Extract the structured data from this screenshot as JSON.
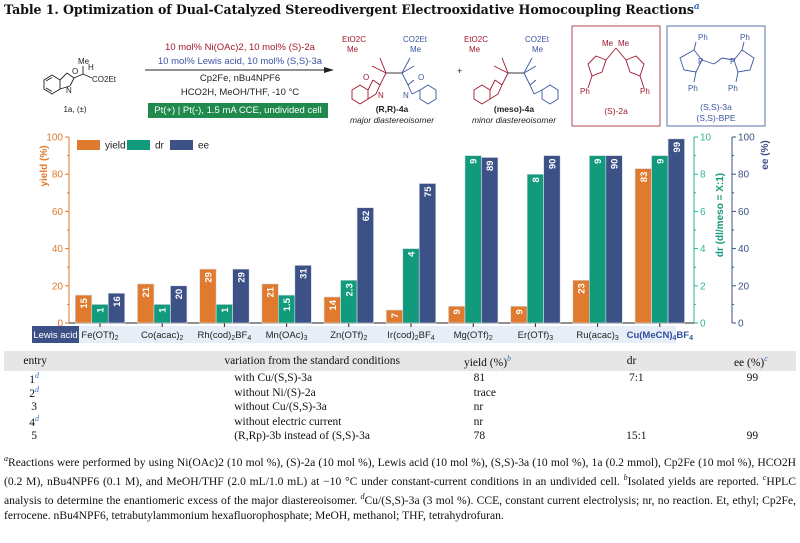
{
  "title": "Table 1. Optimization of Dual-Catalyzed Stereodivergent Electrooxidative Homocoupling Reactions",
  "title_footnote": "a",
  "scheme": {
    "substrate_label": "1a, (±)",
    "substrate_groups": {
      "me": "Me",
      "h": "H",
      "ester": "CO2Et",
      "o": "O",
      "n": "N"
    },
    "conditions": {
      "line1": "10 mol% Ni(OAc)2, 10 mol% (S)-2a",
      "line2": "10 mol% Lewis acid, 10 mol% (S,S)-3a",
      "line3": "Cp2Fe, nBu4NPF6",
      "line4": "HCO2H, MeOH/THF, -10 °C",
      "electro": "Pt(+) | Pt(-), 1.5 mA CCE, undivided cell"
    },
    "product_major": {
      "label": "(R,R)-4a",
      "caption": "major diastereoisomer"
    },
    "product_minor": {
      "label": "(meso)-4a",
      "caption": "minor diastereoisomer"
    },
    "plus": "+",
    "ligand_2a": {
      "label": "(S)-2a"
    },
    "ligand_3a": {
      "label1": "(S,S)-3a",
      "label2": "(S,S)-BPE"
    },
    "group_labels": {
      "eto2c": "EtO2C",
      "co2et": "CO2Et",
      "me": "Me",
      "ph": "Ph",
      "p": "P",
      "o": "O",
      "n": "N"
    },
    "colors": {
      "red": "#a0182c",
      "blue": "#3b56a0",
      "box_red": "#b24a55",
      "box_blue": "#5a72a8"
    }
  },
  "chart_data": {
    "type": "bar",
    "title": "",
    "categories": [
      "Fe(OTf)2",
      "Co(acac)2",
      "Rh(cod)2BF4",
      "Mn(OAc)3",
      "Zn(OTf)2",
      "Ir(cod)2BF4",
      "Mg(OTf)2",
      "Er(OTf)3",
      "Ru(acac)3",
      "Cu(MeCN)4BF4"
    ],
    "category_axis_label": "Lewis acid",
    "highlight_category": "Cu(MeCN)4BF4",
    "series": [
      {
        "name": "yield",
        "axis": "yield",
        "color": "#e07a2e",
        "values": [
          15,
          21,
          29,
          21,
          14,
          7,
          9,
          9,
          23,
          83
        ],
        "labels": [
          "15",
          "21",
          "29",
          "21",
          "14",
          "7",
          "9",
          "9",
          "23",
          "83"
        ]
      },
      {
        "name": "dr",
        "axis": "dr",
        "color": "#129a7c",
        "values": [
          1,
          1,
          1,
          1.5,
          2.3,
          4,
          9,
          8,
          9,
          9
        ],
        "labels": [
          "1",
          "1",
          "1",
          "1.5",
          "2.3",
          "4",
          "9",
          "8",
          "9",
          "9"
        ]
      },
      {
        "name": "ee",
        "axis": "ee",
        "color": "#3c5186",
        "values": [
          16,
          20,
          29,
          31,
          62,
          75,
          89,
          90,
          90,
          99
        ],
        "labels": [
          "16",
          "20",
          "29",
          "31",
          "62",
          "75",
          "89",
          "90",
          "90",
          "99"
        ]
      }
    ],
    "axes": {
      "yield": {
        "label": "yield (%)",
        "ylim": [
          0,
          100
        ],
        "ticks": [
          "0",
          "20",
          "40",
          "60",
          "80",
          "100"
        ],
        "color": "#e07a2e"
      },
      "dr": {
        "label": "dr (dl/meso = X:1)",
        "ylim": [
          0,
          10
        ],
        "ticks": [
          "0",
          "2",
          "4",
          "6",
          "8",
          "10"
        ],
        "color": "#2bb594"
      },
      "ee": {
        "label": "ee (%)",
        "ylim": [
          0,
          100
        ],
        "ticks": [
          "0",
          "20",
          "40",
          "60",
          "80",
          "100"
        ],
        "color": "#3c5186"
      }
    },
    "legend": {
      "position": "top-left",
      "entries": [
        "yield",
        "dr",
        "ee"
      ]
    },
    "grid": false
  },
  "table": {
    "headers": {
      "entry": "entry",
      "variation": "variation from the standard conditions",
      "yield": "yield (%)",
      "yield_sup": "b",
      "dr": "dr",
      "ee": "ee (%)",
      "ee_sup": "c"
    },
    "rows": [
      {
        "entry": "1",
        "sup": "d",
        "variation": "with Cu/(S,S)-3a",
        "yield": "81",
        "dr": "7:1",
        "ee": "99"
      },
      {
        "entry": "2",
        "sup": "d",
        "variation": "without Ni/(S)-2a",
        "yield": "trace",
        "dr": "",
        "ee": ""
      },
      {
        "entry": "3",
        "sup": "",
        "variation": "without Cu/(S,S)-3a",
        "yield": "nr",
        "dr": "",
        "ee": ""
      },
      {
        "entry": "4",
        "sup": "d",
        "variation": "without electric current",
        "yield": "nr",
        "dr": "",
        "ee": ""
      },
      {
        "entry": "5",
        "sup": "",
        "variation": "(R,Rp)-3b instead of (S,S)-3a",
        "yield": "78",
        "dr": "15:1",
        "ee": "99"
      }
    ]
  },
  "footnotes": {
    "a": "Reactions were performed by using Ni(OAc)2 (10 mol %), (S)-2a (10 mol %), Lewis acid (10 mol %), (S,S)-3a (10 mol %), 1a (0.2 mmol), Cp2Fe (10 mol %), HCO2H (0.2 M), nBu4NPF6 (0.1 M), and MeOH/THF (2.0 mL/1.0 mL) at −10 °C under constant-current conditions in an undivided cell.",
    "b": "Isolated yields are reported.",
    "c": "HPLC analysis to determine the enantiomeric excess of the major diastereoisomer.",
    "d": "Cu/(S,S)-3a (3 mol %). CCE, constant current electrolysis; nr, no reaction. Et, ethyl; Cp2Fe, ferrocene. nBu4NPF6, tetrabutylammonium hexafluorophosphate; MeOH, methanol; THF, tetrahydrofuran."
  }
}
